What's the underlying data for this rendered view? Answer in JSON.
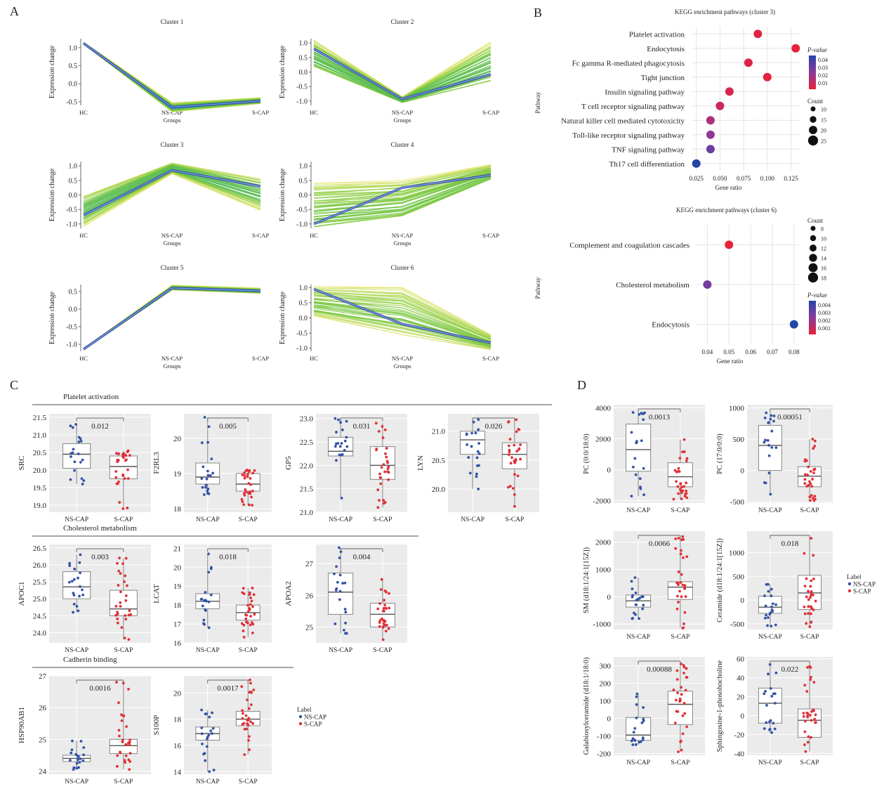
{
  "panel_labels": {
    "a": "A",
    "b": "B",
    "c": "C",
    "d": "D"
  },
  "panel_a": {
    "x_ticks": [
      "HC",
      "NS-CAP",
      "S-CAP"
    ],
    "x_axis_label": "Groups",
    "y_axis_label": "Expression change",
    "clusters": [
      {
        "title": "Cluster 1",
        "ylim": [
          -0.6,
          1.25
        ],
        "yticks": [
          -0.5,
          0.0,
          0.5,
          1.0
        ],
        "tick_labels": [
          "-0.5",
          "0.0",
          "0.5",
          "1.0"
        ],
        "lines_hi": [
          1.15,
          -0.52,
          -0.38
        ],
        "lines_lo": [
          1.1,
          -0.78,
          -0.55
        ],
        "mean": [
          1.12,
          -0.65,
          -0.48
        ]
      },
      {
        "title": "Cluster 2",
        "ylim": [
          -1.15,
          1.15
        ],
        "yticks": [
          -1.0,
          -0.5,
          0.0,
          0.5,
          1.0
        ],
        "tick_labels": [
          "-1.0",
          "-0.5",
          "0.0",
          "0.5",
          "1.0"
        ],
        "lines_hi": [
          1.1,
          -0.85,
          1.05
        ],
        "lines_lo": [
          0.2,
          -1.05,
          -0.3
        ],
        "mean": [
          0.8,
          -0.93,
          -0.08
        ]
      },
      {
        "title": "Cluster 3",
        "ylim": [
          -1.15,
          1.15
        ],
        "yticks": [
          -1.0,
          -0.5,
          0.0,
          0.5,
          1.0
        ],
        "tick_labels": [
          "-1.0",
          "-0.5",
          "0.0",
          "0.5",
          "1.0"
        ],
        "lines_hi": [
          -0.05,
          1.1,
          0.55
        ],
        "lines_lo": [
          -1.1,
          0.72,
          -0.55
        ],
        "mean": [
          -0.7,
          0.85,
          0.3
        ]
      },
      {
        "title": "Cluster 4",
        "ylim": [
          -1.15,
          1.15
        ],
        "yticks": [
          -1.0,
          -0.5,
          0.0,
          0.5,
          1.0
        ],
        "tick_labels": [
          "-1.0",
          "-0.5",
          "0.0",
          "0.5",
          "1.0"
        ],
        "lines_hi": [
          0.4,
          0.5,
          1.05
        ],
        "lines_lo": [
          -1.1,
          -0.75,
          0.55
        ],
        "mean": [
          -1.0,
          0.25,
          0.68
        ]
      },
      {
        "title": "Cluster 5",
        "ylim": [
          -1.2,
          0.7
        ],
        "yticks": [
          -1.0,
          -0.5,
          0.0,
          0.5
        ],
        "tick_labels": [
          "-1.0",
          "-0.5",
          "0.0",
          "0.5"
        ],
        "lines_hi": [
          -1.12,
          0.68,
          0.6
        ],
        "lines_lo": [
          -1.16,
          0.55,
          0.45
        ],
        "mean": [
          -1.14,
          0.6,
          0.52
        ]
      },
      {
        "title": "Cluster 6",
        "ylim": [
          -1.1,
          1.1
        ],
        "yticks": [
          -1.0,
          -0.5,
          0.0,
          0.5,
          1.0
        ],
        "tick_labels": [
          "-1.0",
          "-0.5",
          "0.0",
          "0.5",
          "1.0"
        ],
        "lines_hi": [
          1.05,
          1.0,
          -0.55
        ],
        "lines_lo": [
          0.05,
          -0.55,
          -1.05
        ],
        "mean": [
          0.95,
          -0.2,
          -0.82
        ]
      }
    ]
  },
  "panel_b": {
    "y_axis_label": "Pathway",
    "x_axis_label": "Gene ratio",
    "pvalue_label": "P-value",
    "count_label": "Count",
    "top": {
      "title": "KEGG enrichment pathways (cluster 3)",
      "xlim": [
        0.02,
        0.135
      ],
      "xticks": [
        0.025,
        0.05,
        0.075,
        0.1,
        0.125
      ],
      "xtick_labels": [
        "0.025",
        "0.050",
        "0.075",
        "0.100",
        "0.125"
      ],
      "pathways": [
        "Platelet activation",
        "Endocytosis",
        "Fc gamma R-mediated phagocytosis",
        "Tight junction",
        "Insulin signaling pathway",
        "T cell receptor signaling pathway",
        "Natural killer cell mediated cytotoxicity",
        "Toll-like receptor signaling pathway",
        "TNF signaling pathway",
        "Th17 cell differentiation"
      ],
      "gene_ratio": [
        0.09,
        0.13,
        0.08,
        0.1,
        0.06,
        0.05,
        0.04,
        0.04,
        0.04,
        0.025
      ],
      "pvalue": [
        0.003,
        0.001,
        0.004,
        0.002,
        0.006,
        0.008,
        0.015,
        0.022,
        0.03,
        0.045
      ],
      "pvalue_ticks": [
        "0.04",
        "0.03",
        "0.02",
        "0.01"
      ],
      "count_ticks": [
        "10",
        "15",
        "20",
        "25"
      ]
    },
    "bottom": {
      "title": "KEGG enrichment pathways (cluster 6)",
      "xlim": [
        0.035,
        0.082
      ],
      "xticks": [
        0.04,
        0.05,
        0.06,
        0.07,
        0.08
      ],
      "xtick_labels": [
        "0.04",
        "0.05",
        "0.06",
        "0.07",
        "0.08"
      ],
      "pathways": [
        "Complement and coagulation cascades",
        "Cholesterol metabolism",
        "Endocytosis"
      ],
      "gene_ratio": [
        0.05,
        0.04,
        0.08
      ],
      "pvalue": [
        0.0004,
        0.003,
        0.0046
      ],
      "pvalue_ticks": [
        "0.004",
        "0.003",
        "0.002",
        "0.001"
      ],
      "count_ticks": [
        "8",
        "10",
        "12",
        "14",
        "16",
        "18"
      ]
    }
  },
  "panel_c": {
    "sections": [
      "Platelet activation",
      "Cholesterol metabolism",
      "Cadherin binding"
    ],
    "groups": [
      "NS-CAP",
      "S-CAP"
    ],
    "legend_title": "Label",
    "legend_items": [
      "NS-CAP",
      "S-CAP"
    ],
    "plots": [
      {
        "gene": "SRC",
        "pvalue": "0.012",
        "ylim": [
          18.8,
          21.6
        ],
        "ticks": [
          19.0,
          19.5,
          20.0,
          20.5,
          21.0,
          21.5
        ],
        "tick_labels": [
          "19.0",
          "19.5",
          "20.0",
          "20.5",
          "21.0",
          "21.5"
        ],
        "ns": [
          19.6,
          20.05,
          20.45,
          20.75,
          21.3
        ],
        "s": [
          18.9,
          19.75,
          20.1,
          20.4,
          20.55
        ]
      },
      {
        "gene": "F2RL3",
        "pvalue": "0.005",
        "ylim": [
          17.9,
          20.7
        ],
        "ticks": [
          18,
          19,
          20
        ],
        "tick_labels": [
          "18",
          "19",
          "20"
        ],
        "ns": [
          18.4,
          18.7,
          18.9,
          19.3,
          20.6
        ],
        "s": [
          18.1,
          18.5,
          18.7,
          19.0,
          19.1
        ]
      },
      {
        "gene": "GP5",
        "pvalue": "0.031",
        "ylim": [
          21.0,
          23.1
        ],
        "ticks": [
          21.0,
          21.5,
          22.0,
          22.5,
          23.0
        ],
        "tick_labels": [
          "21.0",
          "21.5",
          "22.0",
          "22.5",
          "23.0"
        ],
        "ns": [
          21.3,
          22.2,
          22.3,
          22.6,
          23.0
        ],
        "s": [
          21.1,
          21.7,
          22.0,
          22.4,
          22.9
        ]
      },
      {
        "gene": "LYN",
        "pvalue": "0.026",
        "ylim": [
          19.6,
          21.3
        ],
        "ticks": [
          20.0,
          20.5,
          21.0
        ],
        "tick_labels": [
          "20.0",
          "20.5",
          "21.0"
        ],
        "ns": [
          20.0,
          20.6,
          20.85,
          21.0,
          21.2
        ],
        "s": [
          19.7,
          20.35,
          20.6,
          20.8,
          21.2
        ]
      },
      {
        "gene": "APOC1",
        "pvalue": "0.003",
        "ylim": [
          23.7,
          26.6
        ],
        "ticks": [
          24.0,
          24.5,
          25.0,
          25.5,
          26.0,
          26.5
        ],
        "tick_labels": [
          "24.0",
          "24.5",
          "25.0",
          "25.5",
          "26.0",
          "26.5"
        ],
        "ns": [
          24.6,
          25.0,
          25.35,
          25.8,
          26.3
        ],
        "s": [
          23.8,
          24.5,
          24.7,
          25.25,
          26.2
        ]
      },
      {
        "gene": "LCAT",
        "pvalue": "0.018",
        "ylim": [
          16.0,
          21.2
        ],
        "ticks": [
          16,
          17,
          18,
          19,
          20,
          21
        ],
        "tick_labels": [
          "16",
          "17",
          "18",
          "19",
          "20",
          "21"
        ],
        "ns": [
          16.8,
          17.8,
          18.2,
          18.6,
          20.7
        ],
        "s": [
          16.3,
          17.2,
          17.6,
          18.0,
          18.9
        ]
      },
      {
        "gene": "APOA2",
        "pvalue": "0.004",
        "ylim": [
          24.5,
          27.6
        ],
        "ticks": [
          25,
          26,
          27
        ],
        "tick_labels": [
          "25",
          "26",
          "27"
        ],
        "ns": [
          24.8,
          25.4,
          26.1,
          26.7,
          27.5
        ],
        "s": [
          24.6,
          25.0,
          25.4,
          25.75,
          26.5
        ]
      },
      {
        "gene": "HSP90AB1",
        "pvalue": "0.0016",
        "ylim": [
          23.9,
          27.0
        ],
        "ticks": [
          24,
          25,
          26,
          27
        ],
        "tick_labels": [
          "24",
          "25",
          "26",
          "27"
        ],
        "ns": [
          24.05,
          24.3,
          24.4,
          24.5,
          24.95
        ],
        "s": [
          24.05,
          24.55,
          24.8,
          25.0,
          26.8
        ]
      },
      {
        "gene": "S100P",
        "pvalue": "0.0017",
        "ylim": [
          13.8,
          21.3
        ],
        "ticks": [
          14,
          16,
          18,
          20
        ],
        "tick_labels": [
          "14",
          "16",
          "18",
          "20"
        ],
        "ns": [
          14.0,
          16.4,
          16.9,
          17.4,
          18.7
        ],
        "s": [
          15.3,
          17.5,
          18.0,
          18.6,
          21.0
        ]
      }
    ]
  },
  "panel_d": {
    "groups": [
      "NS-CAP",
      "S-CAP"
    ],
    "legend_title": "Label",
    "legend_items": [
      "NS-CAP",
      "S-CAP"
    ],
    "plots": [
      {
        "metabolite": "PC (0:0/18:0)",
        "pvalue": "0.0013",
        "ylim": [
          -2150,
          4200
        ],
        "ticks": [
          -2000,
          0,
          2000,
          4000
        ],
        "tick_labels": [
          "-2000",
          "0",
          "2000",
          "4000"
        ],
        "ns": [
          -1700,
          -100,
          1300,
          2950,
          3700
        ],
        "s": [
          -1900,
          -1100,
          -450,
          450,
          1950
        ]
      },
      {
        "metabolite": "PC (17:0/0:0)",
        "pvalue": "0.00051",
        "ylim": [
          -520,
          1050
        ],
        "ticks": [
          -500,
          0,
          500,
          1000
        ],
        "tick_labels": [
          "-500",
          "0",
          "500",
          "1000"
        ],
        "ns": [
          -380,
          0,
          400,
          720,
          920
        ],
        "s": [
          -480,
          -260,
          -90,
          60,
          500
        ]
      },
      {
        "metabolite": "SM (d18:1/24:1[15Z])",
        "pvalue": "0.0066",
        "ylim": [
          -1200,
          2400
        ],
        "ticks": [
          -1000,
          0,
          1000,
          2000
        ],
        "tick_labels": [
          "-1000",
          "0",
          "1000",
          "2000"
        ],
        "ns": [
          -800,
          -380,
          -150,
          60,
          700
        ],
        "s": [
          -1150,
          -100,
          350,
          550,
          2200
        ]
      },
      {
        "metabolite": "Ceramide (d18:1/24:1[15Z])",
        "pvalue": "0.018",
        "ylim": [
          -620,
          1450
        ],
        "ticks": [
          -500,
          0,
          500,
          1000
        ],
        "tick_labels": [
          "-500",
          "0",
          "500",
          "1000"
        ],
        "ns": [
          -550,
          -280,
          -150,
          80,
          330
        ],
        "s": [
          -560,
          -200,
          150,
          520,
          1300
        ]
      },
      {
        "metabolite": "Galabiosylceramide (d18:1/18:0)",
        "pvalue": "0.00088",
        "ylim": [
          -210,
          350
        ],
        "ticks": [
          -200,
          -100,
          0,
          100,
          200,
          300
        ],
        "tick_labels": [
          "-200",
          "-100",
          "0",
          "100",
          "200",
          "300"
        ],
        "ns": [
          -150,
          -125,
          -95,
          5,
          140
        ],
        "s": [
          -190,
          -35,
          80,
          155,
          310
        ]
      },
      {
        "metabolite": "Sphingosine-1-phosohocholine",
        "pvalue": "0.022",
        "ylim": [
          -42,
          62
        ],
        "ticks": [
          -40,
          -20,
          0,
          20,
          40,
          60
        ],
        "tick_labels": [
          "-40",
          "-20",
          "0",
          "20",
          "40",
          "60"
        ],
        "ns": [
          -18,
          -8,
          13,
          29,
          54
        ],
        "s": [
          -38,
          -23,
          -5,
          7,
          52
        ]
      }
    ]
  },
  "colors": {
    "ns": "#3352a8",
    "s": "#e03038",
    "grid_bg": "#ebebeb",
    "box_edge": "#888888",
    "p_high": "#e8223a",
    "p_low": "#2546a8",
    "p_mid": "#8a3a9a"
  }
}
